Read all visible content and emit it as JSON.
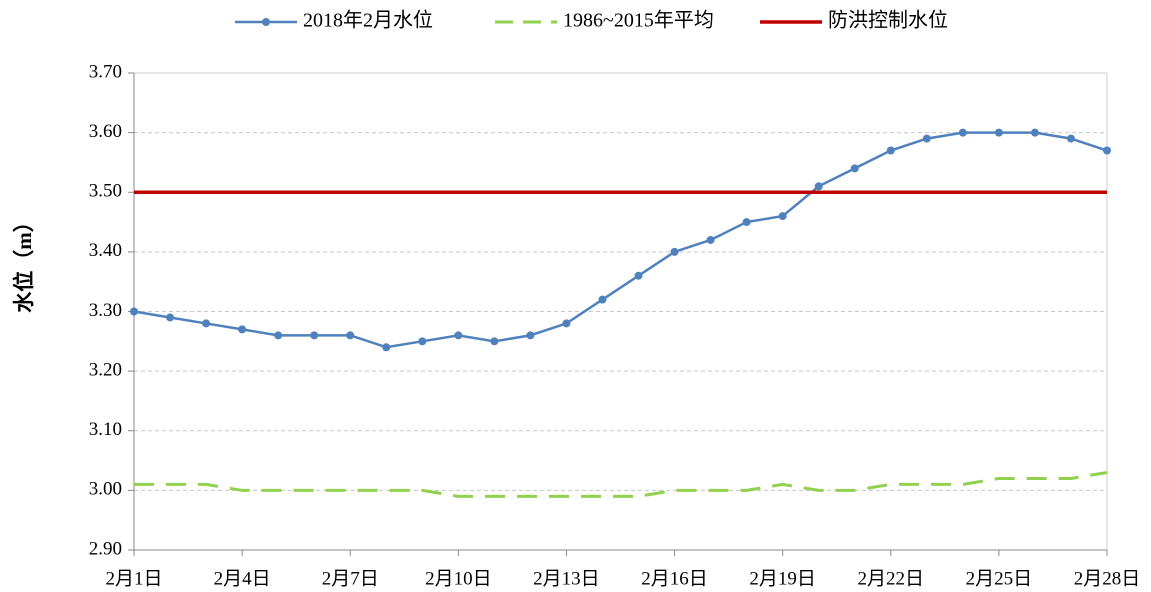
{
  "chart_data": {
    "type": "line",
    "y_label": "水位（m）",
    "categories": [
      "2月1日",
      null,
      null,
      "2月4日",
      null,
      null,
      "2月7日",
      null,
      null,
      "2月10日",
      null,
      null,
      "2月13日",
      null,
      null,
      "2月16日",
      null,
      null,
      "2月19日",
      null,
      null,
      "2月22日",
      null,
      null,
      "2月25日",
      null,
      null,
      "2月28日"
    ],
    "series": [
      {
        "name": "2018年2月水位",
        "color": "#4f81bd",
        "line_style": "solid",
        "markers": true,
        "values": [
          3.3,
          3.29,
          3.28,
          3.27,
          3.26,
          3.26,
          3.26,
          3.24,
          3.25,
          3.26,
          3.25,
          3.26,
          3.28,
          3.32,
          3.36,
          3.4,
          3.42,
          3.45,
          3.46,
          3.51,
          3.54,
          3.57,
          3.59,
          3.6,
          3.6,
          3.6,
          3.59,
          3.57
        ]
      },
      {
        "name": "1986~2015年平均",
        "color": "#92d050",
        "line_style": "dashed",
        "markers": false,
        "values": [
          3.01,
          3.01,
          3.01,
          3.0,
          3.0,
          3.0,
          3.0,
          3.0,
          3.0,
          2.99,
          2.99,
          2.99,
          2.99,
          2.99,
          2.99,
          3.0,
          3.0,
          3.0,
          3.01,
          3.0,
          3.0,
          3.01,
          3.01,
          3.01,
          3.02,
          3.02,
          3.02,
          3.03
        ]
      },
      {
        "name": "防洪控制水位",
        "color": "#c00000",
        "line_style": "solid",
        "markers": false,
        "values": [
          3.5,
          3.5,
          3.5,
          3.5,
          3.5,
          3.5,
          3.5,
          3.5,
          3.5,
          3.5,
          3.5,
          3.5,
          3.5,
          3.5,
          3.5,
          3.5,
          3.5,
          3.5,
          3.5,
          3.5,
          3.5,
          3.5,
          3.5,
          3.5,
          3.5,
          3.5,
          3.5,
          3.5
        ]
      }
    ],
    "ylim": [
      2.9,
      3.7
    ],
    "yticks": [
      {
        "value": 2.9,
        "label": "2.90"
      },
      {
        "value": 3.0,
        "label": "3.00"
      },
      {
        "value": 3.1,
        "label": "3.10"
      },
      {
        "value": 3.2,
        "label": "3.20"
      },
      {
        "value": 3.3,
        "label": "3.30"
      },
      {
        "value": 3.4,
        "label": "3.40"
      },
      {
        "value": 3.5,
        "label": "3.50"
      },
      {
        "value": 3.6,
        "label": "3.60"
      },
      {
        "value": 3.7,
        "label": "3.70"
      }
    ],
    "grid": true,
    "legend": "top"
  }
}
